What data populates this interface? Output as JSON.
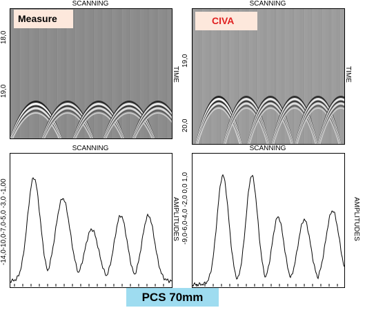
{
  "panels": {
    "top_left": {
      "title": "SCANNING",
      "badge": "Measure",
      "badge_bg": "#fde8dc",
      "badge_color": "#000000",
      "axis_label": "TIME",
      "ticks": [
        "18,0",
        "19,0"
      ]
    },
    "top_right": {
      "title": "SCANNING",
      "badge": "CIVA",
      "badge_bg": "#fde8dc",
      "badge_color": "#e02020",
      "axis_label": "TIME",
      "ticks": [
        "19,0",
        "20,0"
      ]
    },
    "bottom_left": {
      "title": "SCANNING",
      "axis_label": "AMPLITUDES",
      "tick_text": "-14,0-10,0-7,0-5,0 -3,0 -1,00"
    },
    "bottom_right": {
      "title": "SCANNING",
      "axis_label": "AMPLITUDES",
      "tick_text": "-9,0-6,0-4,0 -2,0 0,0 1,0"
    }
  },
  "footer": {
    "label": "PCS 70mm",
    "bg": "#9edcf0"
  }
}
